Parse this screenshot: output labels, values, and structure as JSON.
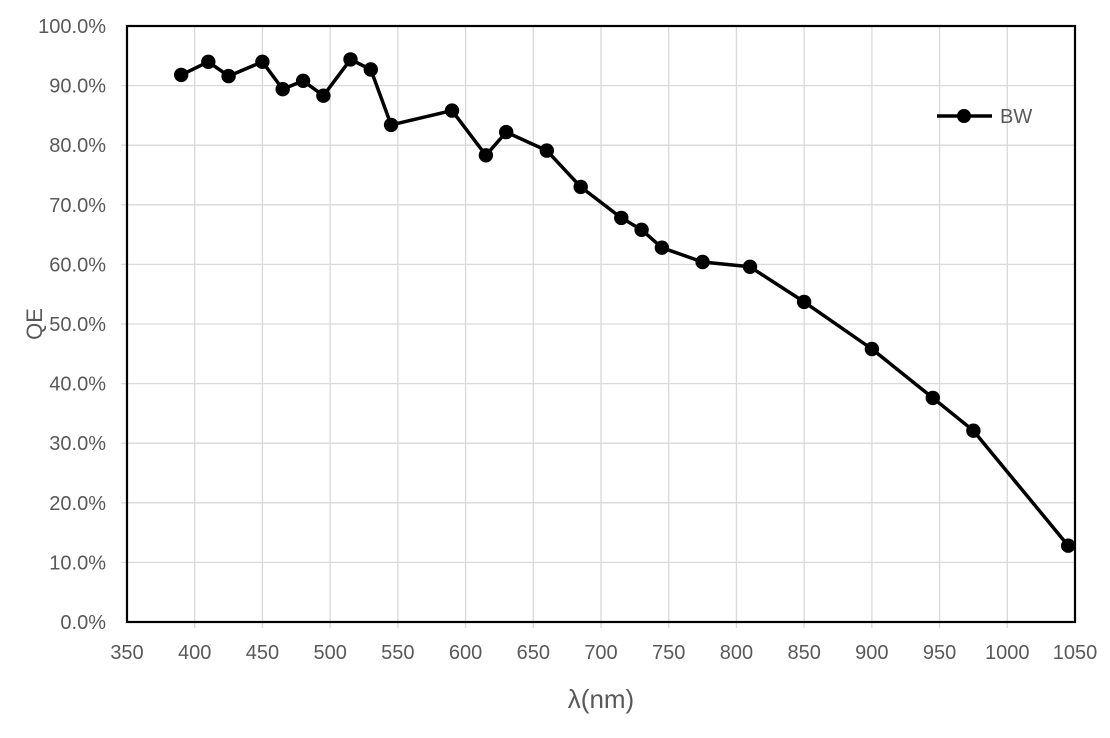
{
  "chart_data": {
    "type": "line",
    "title": "",
    "xlabel": "λ(nm)",
    "ylabel": "QE",
    "xlim": [
      350,
      1050
    ],
    "ylim": [
      0,
      100
    ],
    "grid": true,
    "legend": {
      "position": "top-right-inside",
      "entries": [
        {
          "label": "BW",
          "marker": "circle"
        }
      ]
    },
    "x_ticks": [
      350,
      400,
      450,
      500,
      550,
      600,
      650,
      700,
      750,
      800,
      850,
      900,
      950,
      1000,
      1050
    ],
    "x_tick_labels": [
      "350",
      "400",
      "450",
      "500",
      "550",
      "600",
      "650",
      "700",
      "750",
      "800",
      "850",
      "900",
      "950",
      "1000",
      "1050"
    ],
    "y_ticks": [
      0,
      10,
      20,
      30,
      40,
      50,
      60,
      70,
      80,
      90,
      100
    ],
    "y_tick_labels": [
      "0.0%",
      "10.0%",
      "20.0%",
      "30.0%",
      "40.0%",
      "50.0%",
      "60.0%",
      "70.0%",
      "80.0%",
      "90.0%",
      "100.0%"
    ],
    "series": [
      {
        "name": "BW",
        "marker": "circle",
        "x": [
          390,
          410,
          425,
          450,
          465,
          480,
          495,
          515,
          530,
          545,
          590,
          615,
          630,
          660,
          685,
          715,
          730,
          745,
          775,
          810,
          850,
          900,
          945,
          975,
          1045
        ],
        "y": [
          91.8,
          94.0,
          91.6,
          94.0,
          89.4,
          90.8,
          88.3,
          94.4,
          92.7,
          83.4,
          85.8,
          78.3,
          82.2,
          79.1,
          73.0,
          67.8,
          65.8,
          62.8,
          60.4,
          59.6,
          53.7,
          45.8,
          37.6,
          32.1,
          12.8
        ]
      }
    ],
    "colors": {
      "background": "#ffffff",
      "axis_text": "#595959",
      "grid": "#d9d9d9",
      "border": "#000000",
      "series": "#000000"
    }
  }
}
